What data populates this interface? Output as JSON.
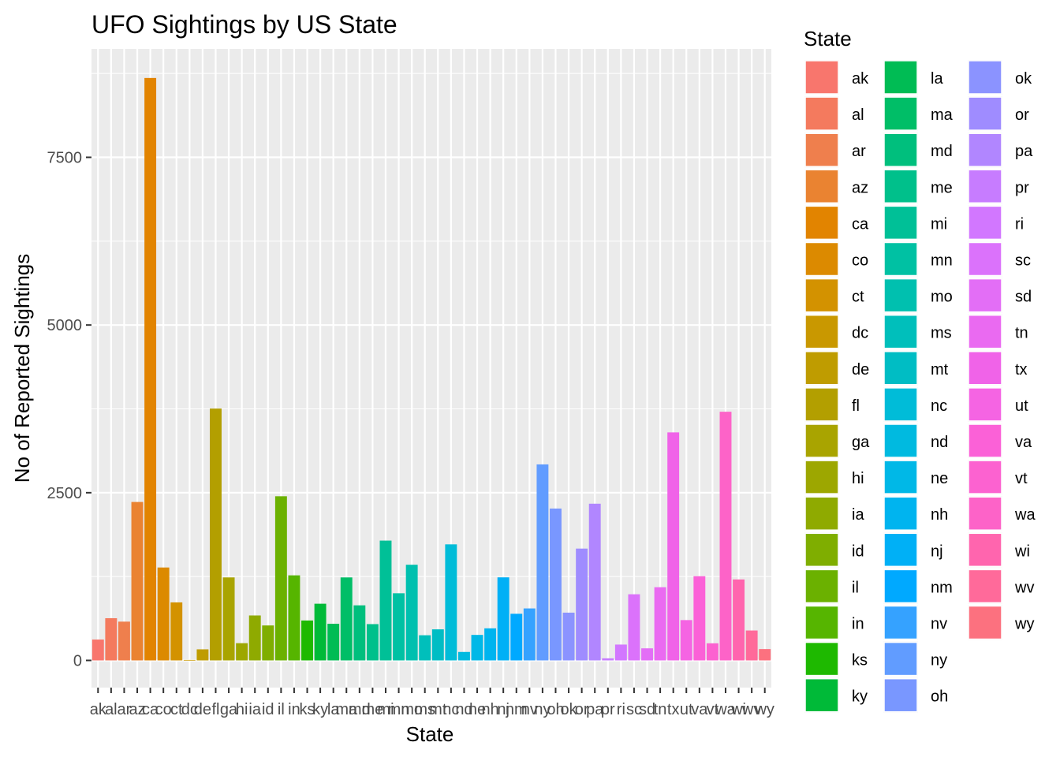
{
  "chart_data": {
    "type": "bar",
    "title": "UFO Sightings by US State",
    "xlabel": "State",
    "ylabel": "No of Reported Sightings",
    "ylim": [
      0,
      9100
    ],
    "yticks": [
      0,
      2500,
      5000,
      7500
    ],
    "grid": true,
    "legend": {
      "title": "State",
      "placement": "right",
      "columns": 3
    },
    "categories": [
      "ak",
      "al",
      "ar",
      "az",
      "ca",
      "co",
      "ct",
      "dc",
      "de",
      "fl",
      "ga",
      "hi",
      "ia",
      "id",
      "il",
      "in",
      "ks",
      "ky",
      "la",
      "ma",
      "md",
      "me",
      "mi",
      "mn",
      "mo",
      "ms",
      "mt",
      "nc",
      "nd",
      "ne",
      "nh",
      "nj",
      "nm",
      "nv",
      "ny",
      "oh",
      "ok",
      "or",
      "pa",
      "pr",
      "ri",
      "sc",
      "sd",
      "tn",
      "tx",
      "ut",
      "va",
      "vt",
      "wa",
      "wi",
      "wv",
      "wy"
    ],
    "values": [
      311,
      629,
      578,
      2362,
      8683,
      1385,
      865,
      7,
      165,
      3754,
      1237,
      257,
      670,
      521,
      2447,
      1268,
      595,
      845,
      546,
      1237,
      821,
      541,
      1786,
      1001,
      1426,
      375,
      463,
      1730,
      126,
      380,
      478,
      1238,
      695,
      775,
      2922,
      2264,
      712,
      1667,
      2336,
      31,
      236,
      986,
      180,
      1091,
      3399,
      601,
      1255,
      255,
      3707,
      1207,
      446,
      169
    ],
    "colors": [
      "#F8766D",
      "#F47A5E",
      "#EF7F4D",
      "#EA8331",
      "#E28400",
      "#DC8A00",
      "#D39200",
      "#C99800",
      "#BF9C00",
      "#B39F00",
      "#A9A400",
      "#9DA700",
      "#8FAA00",
      "#7FAE00",
      "#6BB100",
      "#56B500",
      "#1EB900",
      "#00BA38",
      "#00BC54",
      "#00BE67",
      "#00BF7D",
      "#00C08B",
      "#00C097",
      "#00C1A3",
      "#00C0AF",
      "#00BFBB",
      "#00BDC4",
      "#00BCD8",
      "#00BAE0",
      "#00B8E7",
      "#00B4EF",
      "#00B0F6",
      "#00A9FF",
      "#35A2FF",
      "#619CFF",
      "#7997FF",
      "#8B93FF",
      "#9F8CFF",
      "#B186FF",
      "#C77CFF",
      "#D277FF",
      "#DB72FB",
      "#E36EF6",
      "#EA6AF1",
      "#F063E8",
      "#F564E3",
      "#FB61D7",
      "#FC62D0",
      "#FD63C8",
      "#FF65AE",
      "#FF6A9A",
      "#FC717F"
    ]
  }
}
